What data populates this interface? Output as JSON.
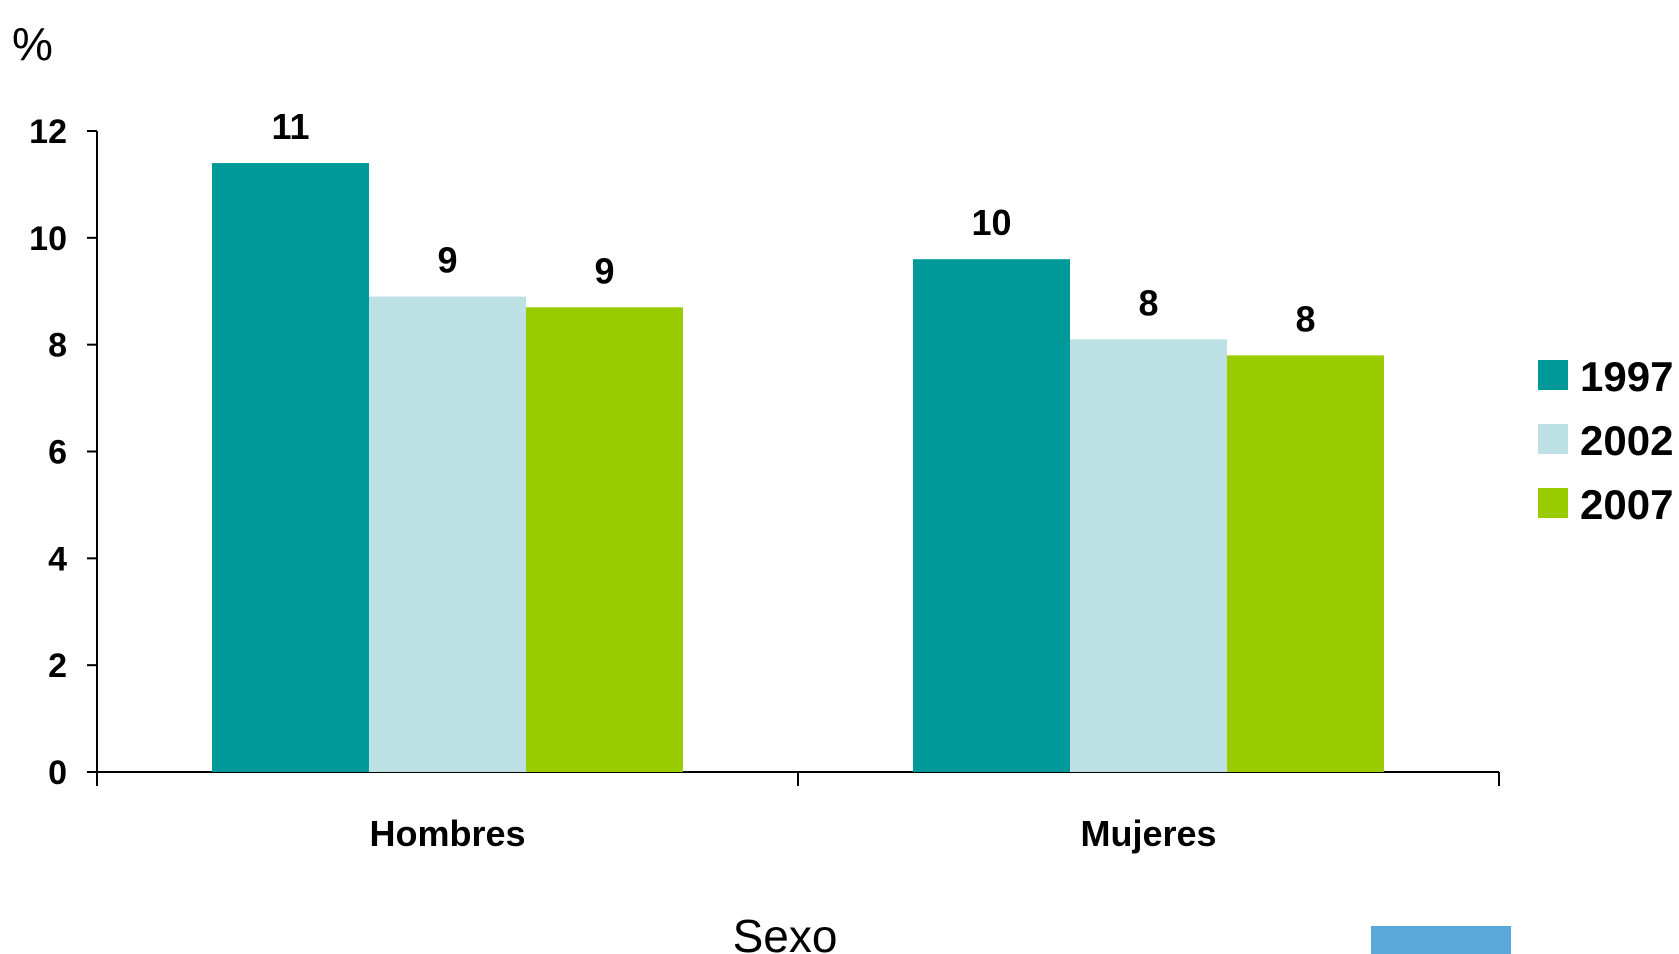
{
  "chart_data": {
    "type": "bar",
    "title": "",
    "ylabel": "%",
    "xlabel": "Sexo",
    "categories": [
      "Hombres",
      "Mujeres"
    ],
    "series": [
      {
        "name": "1997",
        "color": "#009999",
        "values": [
          11.4,
          9.6
        ],
        "labels": [
          "11",
          "10"
        ]
      },
      {
        "name": "2002",
        "color": "#bce0e3",
        "values": [
          8.9,
          8.1
        ],
        "labels": [
          "9",
          "8"
        ]
      },
      {
        "name": "2007",
        "color": "#99cc00",
        "values": [
          8.7,
          7.8
        ],
        "labels": [
          "9",
          "8"
        ]
      }
    ],
    "ylim": [
      0,
      12
    ],
    "yticks": [
      "0",
      "2",
      "4",
      "6",
      "8",
      "10",
      "12"
    ],
    "grid": false,
    "legend_position": "right"
  },
  "decoration": {
    "icon": "photo-thumbnail-icon",
    "color": "#5aa8d8"
  }
}
